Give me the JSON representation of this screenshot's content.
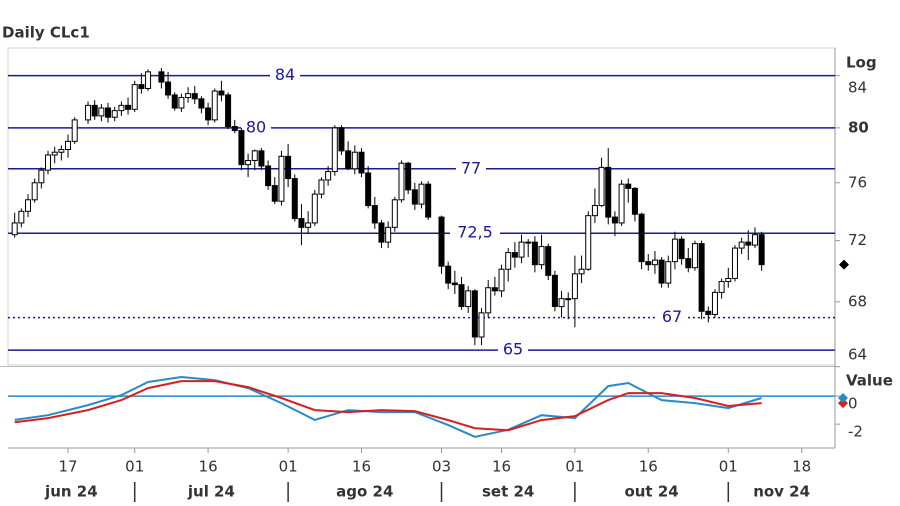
{
  "chart_data": {
    "type": "candlestick",
    "title": "Daily CLc1",
    "log_label": "Log",
    "value_label": "Value",
    "log_scale": true,
    "ylim": [
      64.1,
      86.2
    ],
    "yticks": [
      64,
      68,
      72,
      76,
      80,
      84
    ],
    "xlim": [
      "2024-06-04",
      "2024-11-25"
    ],
    "xticks": [
      {
        "value": "2024-06-17",
        "label": "17"
      },
      {
        "value": "2024-07-01",
        "label": "01"
      },
      {
        "value": "2024-07-16",
        "label": "16"
      },
      {
        "value": "2024-08-01",
        "label": "01"
      },
      {
        "value": "2024-08-16",
        "label": "16"
      },
      {
        "value": "2024-09-03",
        "label": "03"
      },
      {
        "value": "2024-09-16",
        "label": "16"
      },
      {
        "value": "2024-10-01",
        "label": "01"
      },
      {
        "value": "2024-10-16",
        "label": "16"
      },
      {
        "value": "2024-11-01",
        "label": "01"
      },
      {
        "value": "2024-11-18",
        "label": "18"
      }
    ],
    "month_labels": [
      "jun 24",
      "jul 24",
      "ago 24",
      "set 24",
      "out 24",
      "nov 24"
    ],
    "month_starts": [
      "2024-07-01",
      "2024-08-01",
      "2024-09-03",
      "2024-10-01",
      "2024-11-01"
    ],
    "levels": {
      "values": [
        84,
        80,
        77,
        72.5,
        67,
        65
      ],
      "value_labels": [
        "84",
        "80",
        "77",
        "72,5",
        "67",
        "65"
      ],
      "dotted": [
        false,
        false,
        false,
        false,
        true,
        false
      ],
      "color": "#1a1a9a"
    },
    "candles": {
      "x": [
        "2024-06-05",
        "2024-06-06",
        "2024-06-07",
        "2024-06-10",
        "2024-06-11",
        "2024-06-12",
        "2024-06-13",
        "2024-06-14",
        "2024-06-17",
        "2024-06-18",
        "2024-06-20",
        "2024-06-21",
        "2024-06-24",
        "2024-06-25",
        "2024-06-26",
        "2024-06-27",
        "2024-06-28",
        "2024-07-01",
        "2024-07-02",
        "2024-07-03",
        "2024-07-05",
        "2024-07-08",
        "2024-07-09",
        "2024-07-10",
        "2024-07-11",
        "2024-07-12",
        "2024-07-15",
        "2024-07-16",
        "2024-07-17",
        "2024-07-18",
        "2024-07-19",
        "2024-07-22",
        "2024-07-23",
        "2024-07-24",
        "2024-07-25",
        "2024-07-26",
        "2024-07-29",
        "2024-07-30",
        "2024-07-31",
        "2024-08-01",
        "2024-08-02",
        "2024-08-05",
        "2024-08-06",
        "2024-08-07",
        "2024-08-08",
        "2024-08-09",
        "2024-08-12",
        "2024-08-13",
        "2024-08-14",
        "2024-08-15",
        "2024-08-16",
        "2024-08-19",
        "2024-08-20",
        "2024-08-21",
        "2024-08-22",
        "2024-08-23",
        "2024-08-26",
        "2024-08-27",
        "2024-08-28",
        "2024-08-29",
        "2024-08-30",
        "2024-09-03",
        "2024-09-04",
        "2024-09-05",
        "2024-09-06",
        "2024-09-09",
        "2024-09-10",
        "2024-09-11",
        "2024-09-12",
        "2024-09-13",
        "2024-09-16",
        "2024-09-17",
        "2024-09-18",
        "2024-09-19",
        "2024-09-20",
        "2024-09-23",
        "2024-09-24",
        "2024-09-25",
        "2024-09-26",
        "2024-09-27",
        "2024-09-30",
        "2024-10-01",
        "2024-10-02",
        "2024-10-03",
        "2024-10-04",
        "2024-10-07",
        "2024-10-08",
        "2024-10-09",
        "2024-10-10",
        "2024-10-11",
        "2024-10-14",
        "2024-10-15",
        "2024-10-16",
        "2024-10-17",
        "2024-10-18",
        "2024-10-21",
        "2024-10-22",
        "2024-10-23",
        "2024-10-24",
        "2024-10-25",
        "2024-10-28",
        "2024-10-29",
        "2024-10-30",
        "2024-10-31",
        "2024-11-01",
        "2024-11-04",
        "2024-11-05",
        "2024-11-06",
        "2024-11-07",
        "2024-11-08"
      ],
      "open": [
        72.4,
        73.2,
        74.0,
        74.8,
        76.0,
        76.9,
        78.0,
        78.2,
        78.4,
        79.0,
        80.6,
        81.7,
        80.9,
        81.5,
        80.8,
        81.3,
        81.7,
        81.4,
        83.3,
        83.0,
        84.3,
        83.5,
        82.5,
        81.5,
        82.3,
        82.6,
        82.2,
        81.5,
        80.6,
        82.8,
        82.5,
        80.1,
        79.8,
        77.3,
        77.6,
        78.3,
        77.2,
        75.8,
        74.7,
        77.9,
        76.3,
        73.5,
        72.9,
        73.2,
        75.2,
        76.2,
        76.8,
        80.0,
        78.3,
        77.0,
        78.2,
        76.7,
        74.4,
        73.2,
        71.9,
        72.9,
        74.8,
        77.4,
        75.5,
        74.5,
        75.9,
        73.6,
        70.3,
        69.2,
        69.1,
        67.7,
        68.7,
        65.8,
        67.3,
        68.9,
        68.7,
        70.1,
        71.2,
        70.9,
        71.9,
        71.9,
        70.4,
        71.6,
        69.7,
        67.7,
        68.2,
        68.2,
        69.8,
        70.1,
        73.7,
        74.4,
        77.1,
        73.6,
        73.2,
        75.9,
        75.6,
        73.8,
        70.6,
        70.4,
        70.7,
        69.2,
        70.6,
        72.1,
        70.8,
        70.2,
        71.8,
        67.4,
        67.2,
        68.6,
        69.3,
        69.5,
        71.5,
        71.9,
        71.7,
        72.4
      ],
      "high": [
        73.9,
        74.2,
        75.2,
        76.3,
        77.1,
        78.3,
        78.6,
        78.7,
        79.5,
        80.8,
        82.0,
        82.1,
        81.8,
        81.9,
        81.6,
        82.0,
        82.3,
        83.6,
        84.2,
        84.5,
        84.6,
        84.3,
        82.7,
        82.6,
        83.1,
        83.2,
        82.4,
        81.9,
        83.0,
        83.6,
        82.7,
        80.6,
        80.0,
        78.1,
        78.4,
        78.5,
        77.6,
        76.4,
        78.3,
        78.8,
        76.6,
        74.5,
        74.0,
        75.5,
        76.4,
        77.2,
        80.2,
        80.2,
        79.0,
        78.7,
        78.5,
        77.2,
        75.0,
        73.4,
        73.3,
        75.0,
        77.6,
        77.5,
        76.0,
        76.1,
        76.1,
        73.7,
        70.6,
        70.0,
        69.6,
        69.0,
        68.8,
        67.6,
        69.4,
        69.6,
        70.4,
        71.5,
        71.9,
        72.4,
        72.1,
        72.3,
        72.4,
        71.8,
        70.0,
        68.7,
        68.6,
        71.0,
        71.0,
        74.0,
        75.6,
        77.8,
        78.5,
        74.0,
        76.2,
        76.3,
        75.7,
        73.9,
        71.1,
        71.3,
        70.9,
        71.0,
        72.6,
        72.3,
        71.5,
        72.0,
        72.0,
        67.7,
        68.8,
        69.5,
        70.2,
        71.7,
        72.2,
        72.7,
        72.9,
        72.6
      ],
      "low": [
        72.2,
        72.9,
        73.6,
        74.6,
        75.6,
        76.6,
        77.4,
        77.6,
        77.8,
        78.8,
        80.3,
        80.6,
        80.5,
        80.4,
        80.5,
        80.9,
        81.0,
        81.2,
        82.6,
        82.8,
        83.0,
        82.2,
        81.3,
        81.2,
        81.9,
        81.8,
        81.1,
        80.2,
        80.4,
        82.0,
        79.9,
        79.6,
        76.9,
        76.4,
        76.9,
        76.9,
        75.5,
        74.5,
        74.4,
        75.7,
        73.3,
        71.7,
        72.5,
        73.0,
        74.9,
        75.8,
        76.5,
        78.0,
        76.9,
        76.6,
        76.4,
        74.2,
        72.8,
        71.5,
        71.5,
        72.6,
        74.6,
        75.2,
        74.1,
        74.2,
        73.4,
        69.8,
        68.8,
        68.5,
        67.5,
        67.3,
        65.3,
        65.3,
        67.0,
        68.4,
        68.3,
        69.3,
        70.2,
        70.5,
        70.9,
        69.9,
        70.1,
        69.4,
        67.4,
        67.0,
        66.9,
        66.4,
        69.2,
        70.0,
        73.2,
        74.3,
        73.1,
        72.3,
        73.0,
        74.6,
        73.3,
        70.1,
        70.0,
        69.8,
        68.9,
        68.9,
        70.1,
        70.4,
        69.9,
        70.0,
        66.9,
        66.7,
        67.0,
        68.2,
        68.9,
        69.3,
        71.1,
        70.7,
        71.5,
        70.0
      ],
      "close": [
        73.2,
        74.0,
        74.8,
        76.0,
        76.9,
        78.0,
        78.2,
        78.4,
        79.0,
        80.6,
        81.7,
        80.9,
        81.5,
        80.8,
        81.3,
        81.7,
        81.4,
        83.3,
        83.0,
        84.3,
        83.5,
        82.5,
        81.5,
        82.3,
        82.6,
        82.2,
        81.5,
        80.6,
        82.8,
        82.5,
        80.1,
        79.8,
        77.3,
        77.6,
        78.3,
        77.2,
        75.8,
        74.7,
        77.9,
        76.3,
        73.5,
        72.9,
        73.2,
        75.2,
        76.2,
        76.8,
        80.0,
        78.3,
        77.0,
        78.2,
        76.7,
        74.4,
        73.2,
        71.9,
        72.9,
        74.8,
        77.4,
        75.5,
        74.5,
        75.9,
        73.6,
        70.3,
        69.2,
        69.1,
        67.7,
        68.7,
        65.8,
        67.3,
        68.9,
        68.7,
        70.1,
        71.2,
        70.9,
        71.9,
        71.9,
        70.4,
        71.6,
        69.7,
        67.7,
        68.2,
        68.2,
        69.8,
        70.1,
        73.7,
        74.4,
        77.1,
        73.6,
        73.2,
        75.9,
        75.6,
        73.8,
        70.6,
        70.4,
        70.7,
        69.2,
        70.6,
        72.1,
        70.8,
        70.2,
        71.8,
        67.4,
        67.2,
        68.6,
        69.3,
        69.5,
        71.5,
        71.9,
        71.7,
        72.4,
        70.4
      ]
    },
    "oscillator": {
      "ylim": [
        -3.7,
        2.0
      ],
      "yticks": [
        0,
        -2
      ],
      "reference_line": 0,
      "reference_color": "#2a8ac8",
      "x": [
        "2024-06-05",
        "2024-06-12",
        "2024-06-20",
        "2024-06-27",
        "2024-07-03",
        "2024-07-10",
        "2024-07-17",
        "2024-07-24",
        "2024-07-31",
        "2024-08-07",
        "2024-08-14",
        "2024-08-21",
        "2024-08-28",
        "2024-09-04",
        "2024-09-10",
        "2024-09-17",
        "2024-09-24",
        "2024-10-01",
        "2024-10-08",
        "2024-10-11",
        "2024-10-18",
        "2024-10-25",
        "2024-11-01",
        "2024-11-08"
      ],
      "series": [
        {
          "color": "#2a8ac8",
          "values": [
            -1.7,
            -1.36,
            -0.64,
            0.07,
            1.0,
            1.36,
            1.14,
            0.57,
            -0.5,
            -1.7,
            -1.0,
            -1.14,
            -1.14,
            -2.07,
            -2.9,
            -2.4,
            -1.36,
            -1.57,
            0.71,
            0.93,
            -0.29,
            -0.5,
            -0.86,
            -0.14
          ]
        },
        {
          "color": "#d62020",
          "values": [
            -1.86,
            -1.57,
            -1.0,
            -0.29,
            0.57,
            1.07,
            1.07,
            0.64,
            -0.14,
            -1.0,
            -1.14,
            -1.0,
            -1.07,
            -1.71,
            -2.29,
            -2.43,
            -1.71,
            -1.43,
            -0.29,
            0.21,
            0.21,
            -0.14,
            -0.71,
            -0.5
          ]
        }
      ]
    }
  }
}
